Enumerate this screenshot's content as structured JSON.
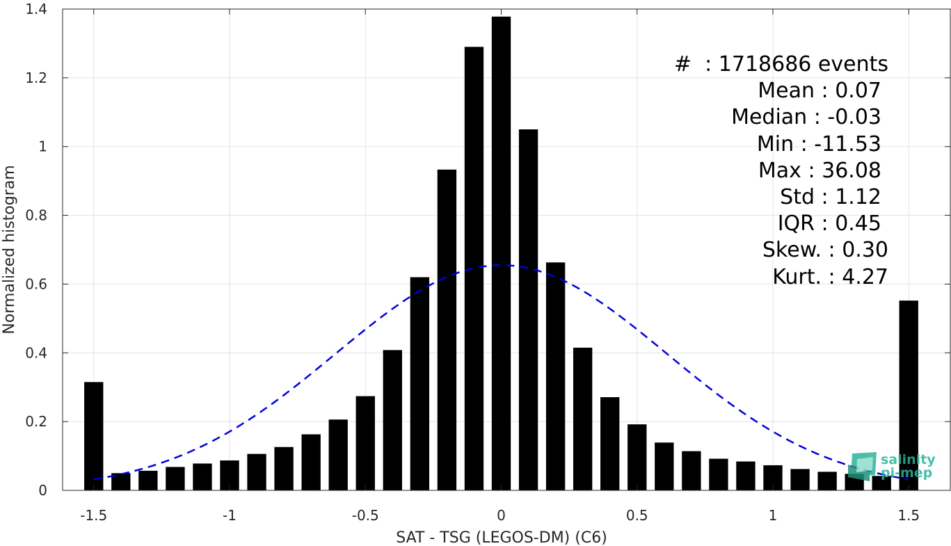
{
  "chart_data": {
    "type": "bar",
    "title": "",
    "xlabel": "SAT - TSG (LEGOS-DM) (C6)",
    "ylabel": "Normalized histogram",
    "xlim": [
      -1.55,
      1.55
    ],
    "ylim": [
      0,
      1.4
    ],
    "xticks": [
      -1.5,
      -1,
      -0.5,
      0,
      0.5,
      1,
      1.5
    ],
    "xtick_labels": [
      "-1.5",
      "-1",
      "-0.5",
      "0",
      "0.5",
      "1",
      "1.5"
    ],
    "yticks": [
      0,
      0.2,
      0.4,
      0.6,
      0.8,
      1,
      1.2,
      1.4
    ],
    "ytick_labels": [
      "0",
      "0.2",
      "0.4",
      "0.6",
      "0.8",
      "1",
      "1.2",
      "1.4"
    ],
    "grid": true,
    "bar_width": 0.07,
    "x": [
      -1.5,
      -1.4,
      -1.3,
      -1.2,
      -1.1,
      -1.0,
      -0.9,
      -0.8,
      -0.7,
      -0.6,
      -0.5,
      -0.4,
      -0.3,
      -0.2,
      -0.1,
      0.0,
      0.1,
      0.2,
      0.3,
      0.4,
      0.5,
      0.6,
      0.7,
      0.8,
      0.9,
      1.0,
      1.1,
      1.2,
      1.3,
      1.4,
      1.5
    ],
    "values": [
      0.315,
      0.05,
      0.057,
      0.068,
      0.078,
      0.087,
      0.106,
      0.126,
      0.163,
      0.206,
      0.274,
      0.408,
      0.62,
      0.933,
      1.29,
      1.378,
      1.05,
      0.663,
      0.415,
      0.271,
      0.192,
      0.139,
      0.114,
      0.092,
      0.084,
      0.073,
      0.062,
      0.054,
      0.048,
      0.042,
      0.552
    ],
    "bar_color": "#000000",
    "fit_curve": {
      "style": "dashed",
      "color": "#0000dd",
      "mean": 0,
      "std": 0.61,
      "peak": 0.655,
      "x_range": [
        -1.5,
        1.5
      ]
    },
    "annotations": [
      "#  : 1718686 events",
      "Mean : 0.07",
      "Median : -0.03",
      "Min : -11.53",
      "Max : 36.08",
      "Std : 1.12",
      "IQR : 0.45",
      "Skew. : 0.30",
      "Kurt. : 4.27"
    ]
  },
  "logo": {
    "line1": "salinity",
    "line2": "pi-mep",
    "color": "#2bb39a"
  }
}
